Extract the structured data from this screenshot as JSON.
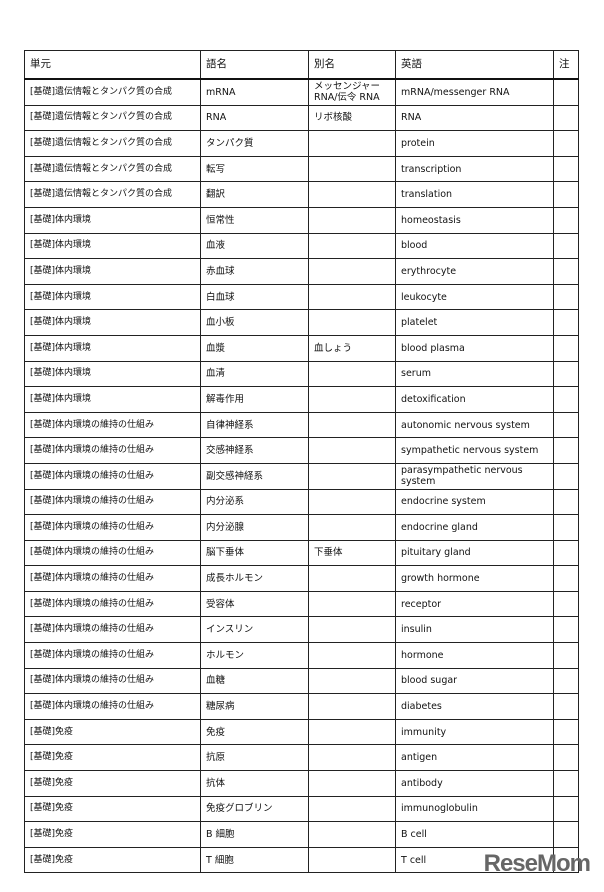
{
  "headers": [
    "単元",
    "語名",
    "別名",
    "英語",
    "注"
  ],
  "rows": [
    [
      "[基礎]遺伝情報とタンパク質の合成",
      "mRNA",
      "メッセンジャーRNA/伝令 RNA",
      "mRNA/messenger RNA",
      ""
    ],
    [
      "[基礎]遺伝情報とタンパク質の合成",
      "RNA",
      "リボ核酸",
      "RNA",
      ""
    ],
    [
      "[基礎]遺伝情報とタンパク質の合成",
      "タンパク質",
      "",
      "protein",
      ""
    ],
    [
      "[基礎]遺伝情報とタンパク質の合成",
      "転写",
      "",
      "transcription",
      ""
    ],
    [
      "[基礎]遺伝情報とタンパク質の合成",
      "翻訳",
      "",
      "translation",
      ""
    ],
    [
      "[基礎]体内環境",
      "恒常性",
      "",
      "homeostasis",
      ""
    ],
    [
      "[基礎]体内環境",
      "血液",
      "",
      "blood",
      ""
    ],
    [
      "[基礎]体内環境",
      "赤血球",
      "",
      "erythrocyte",
      ""
    ],
    [
      "[基礎]体内環境",
      "白血球",
      "",
      "leukocyte",
      ""
    ],
    [
      "[基礎]体内環境",
      "血小板",
      "",
      "platelet",
      ""
    ],
    [
      "[基礎]体内環境",
      "血漿",
      "血しょう",
      "blood plasma",
      ""
    ],
    [
      "[基礎]体内環境",
      "血清",
      "",
      "serum",
      ""
    ],
    [
      "[基礎]体内環境",
      "解毒作用",
      "",
      "detoxification",
      ""
    ],
    [
      "[基礎]体内環境の維持の仕組み",
      "自律神経系",
      "",
      "autonomic nervous system",
      ""
    ],
    [
      "[基礎]体内環境の維持の仕組み",
      "交感神経系",
      "",
      "sympathetic nervous system",
      ""
    ],
    [
      "[基礎]体内環境の維持の仕組み",
      "副交感神経系",
      "",
      "parasympathetic nervous system",
      ""
    ],
    [
      "[基礎]体内環境の維持の仕組み",
      "内分泌系",
      "",
      "endocrine system",
      ""
    ],
    [
      "[基礎]体内環境の維持の仕組み",
      "内分泌腺",
      "",
      "endocrine gland",
      ""
    ],
    [
      "[基礎]体内環境の維持の仕組み",
      "脳下垂体",
      "下垂体",
      "pituitary gland",
      ""
    ],
    [
      "[基礎]体内環境の維持の仕組み",
      "成長ホルモン",
      "",
      "growth hormone",
      ""
    ],
    [
      "[基礎]体内環境の維持の仕組み",
      "受容体",
      "",
      "receptor",
      ""
    ],
    [
      "[基礎]体内環境の維持の仕組み",
      "インスリン",
      "",
      "insulin",
      ""
    ],
    [
      "[基礎]体内環境の維持の仕組み",
      "ホルモン",
      "",
      "hormone",
      ""
    ],
    [
      "[基礎]体内環境の維持の仕組み",
      "血糖",
      "",
      "blood sugar",
      ""
    ],
    [
      "[基礎]体内環境の維持の仕組み",
      "糖尿病",
      "",
      "diabetes",
      ""
    ],
    [
      "[基礎]免疫",
      "免疫",
      "",
      "immunity",
      ""
    ],
    [
      "[基礎]免疫",
      "抗原",
      "",
      "antigen",
      ""
    ],
    [
      "[基礎]免疫",
      "抗体",
      "",
      "antibody",
      ""
    ],
    [
      "[基礎]免疫",
      "免疫グロブリン",
      "",
      "immunoglobulin",
      ""
    ],
    [
      "[基礎]免疫",
      "B 細胞",
      "",
      "B cell",
      ""
    ],
    [
      "[基礎]免疫",
      "T 細胞",
      "",
      "T cell",
      ""
    ]
  ],
  "watermark": "ReseMom"
}
